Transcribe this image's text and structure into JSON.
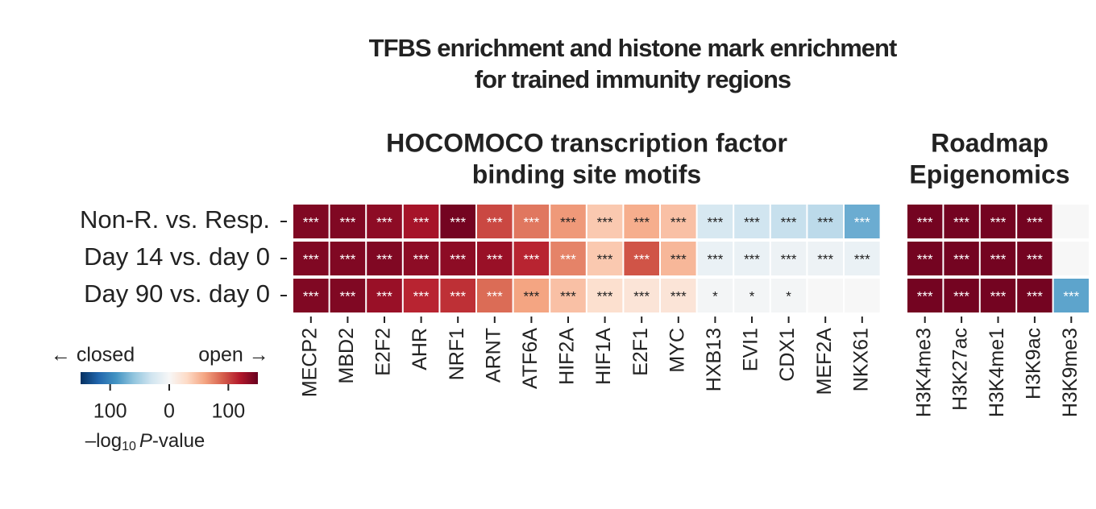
{
  "title": [
    "TFBS enrichment and histone mark enrichment",
    "for trained immunity regions"
  ],
  "chart_data": [
    {
      "type": "heatmap",
      "title": [
        "HOCOMOCO transcription factor",
        "binding site motifs"
      ],
      "rows": [
        "Non-R. vs. Resp.",
        "Day 14 vs. day 0",
        "Day 90 vs. day 0"
      ],
      "categories": [
        "MECP2",
        "MBD2",
        "E2F2",
        "AHR",
        "NRF1",
        "ARNT",
        "ATF6A",
        "HIF2A",
        "HIF1A",
        "E2F1",
        "MYC",
        "HXB13",
        "EVI1",
        "CDX1",
        "MEF2A",
        "NKX61"
      ],
      "values": [
        [
          140,
          140,
          135,
          125,
          145,
          100,
          80,
          65,
          40,
          55,
          45,
          -25,
          -30,
          -35,
          -40,
          -75
        ],
        [
          140,
          140,
          140,
          135,
          135,
          130,
          115,
          75,
          40,
          95,
          50,
          -10,
          -10,
          -8,
          -8,
          -10
        ],
        [
          140,
          140,
          130,
          115,
          110,
          85,
          60,
          45,
          25,
          20,
          20,
          -3,
          -3,
          -3,
          0,
          0
        ]
      ],
      "value_labels": [
        [
          "***",
          "***",
          "***",
          "***",
          "***",
          "***",
          "***",
          "***",
          "***",
          "***",
          "***",
          "***",
          "***",
          "***",
          "***",
          "***"
        ],
        [
          "***",
          "***",
          "***",
          "***",
          "***",
          "***",
          "***",
          "***",
          "***",
          "***",
          "***",
          "***",
          "***",
          "***",
          "***",
          "***"
        ],
        [
          "***",
          "***",
          "***",
          "***",
          "***",
          "***",
          "***",
          "***",
          "***",
          "***",
          "***",
          "*",
          "*",
          "*",
          null,
          null
        ]
      ]
    },
    {
      "type": "heatmap",
      "title": [
        "Roadmap",
        "Epigenomics"
      ],
      "categories": [
        "H3K4me3",
        "H3K27ac",
        "H3K4me1",
        "H3K9ac",
        "H3K9me3"
      ],
      "values": [
        [
          145,
          145,
          145,
          145,
          0
        ],
        [
          145,
          145,
          145,
          145,
          0
        ],
        [
          145,
          145,
          145,
          145,
          -80
        ]
      ],
      "value_labels": [
        [
          "***",
          "***",
          "***",
          "***",
          null
        ],
        [
          "***",
          "***",
          "***",
          "***",
          null
        ],
        [
          "***",
          "***",
          "***",
          "***",
          "***"
        ]
      ]
    }
  ],
  "colorbar": {
    "colormap": [
      "#053061",
      "#2166ac",
      "#4393c3",
      "#92c5de",
      "#d1e5f0",
      "#f7f7f7",
      "#fddbc7",
      "#f4a582",
      "#d6604d",
      "#b2182b",
      "#67001f"
    ],
    "clim": [
      -150,
      150
    ],
    "ticks": [
      {
        "value": -100,
        "label": "100"
      },
      0,
      100
    ],
    "left_label": "← closed",
    "right_label": "open →",
    "label_prefix": "–log",
    "label_sub": "10",
    "label_italic": "P",
    "label_suffix": "-value"
  }
}
